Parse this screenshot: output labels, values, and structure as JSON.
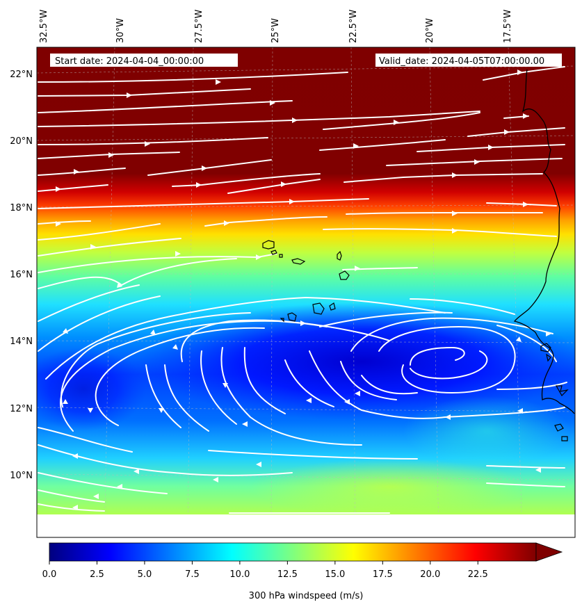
{
  "header": {
    "start_date": "Start date: 2024-04-04_00:00:00",
    "valid_date": "Valid_date: 2024-04-05T07:00:00.00"
  },
  "map": {
    "lon_labels": [
      "32.5°W",
      "30°W",
      "27.5°W",
      "25°W",
      "22.5°W",
      "20°W",
      "17.5°W"
    ],
    "lat_labels": [
      "22°N",
      "20°N",
      "18°N",
      "16°N",
      "14°N",
      "12°N",
      "10°N"
    ],
    "field": "300 hPa windspeed",
    "features": [
      "streamlines",
      "coastline",
      "cape-verde-islands",
      "cyclonic-vortex"
    ]
  },
  "colorbar": {
    "label": "300 hPa windspeed (m/s)",
    "ticks": [
      "0.0",
      "2.5",
      "5.0",
      "7.5",
      "10.0",
      "12.5",
      "15.0",
      "17.5",
      "20.0",
      "22.5"
    ],
    "range": [
      0,
      25
    ],
    "extend": "max",
    "colormap": "jet",
    "colors": [
      "#00007f",
      "#0000ff",
      "#007fff",
      "#00ffff",
      "#7fff7f",
      "#ffff00",
      "#ff7f00",
      "#ff0000",
      "#7f0000"
    ]
  }
}
